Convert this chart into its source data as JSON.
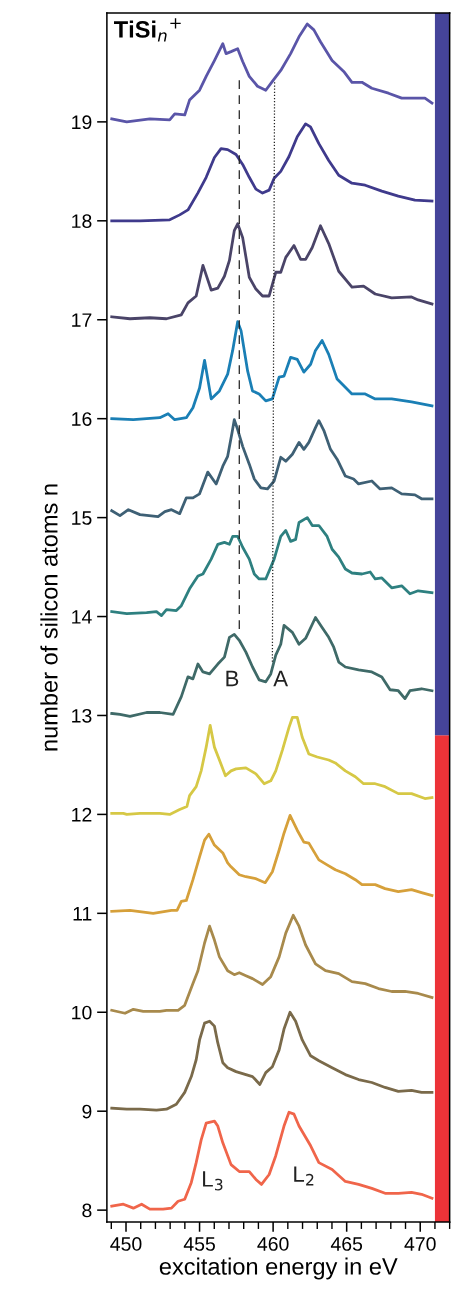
{
  "chart_data": {
    "type": "line",
    "title": "TiSi$_{n}$$^{+}$",
    "xlabel": "excitation energy in eV",
    "ylabel": "number of silicon atoms n",
    "xlim": [
      448.7,
      472
    ],
    "xticks": [
      {
        "value": 449,
        "label": null
      },
      450,
      {
        "value": 451,
        "label": null
      },
      {
        "value": 452,
        "label": null
      },
      {
        "value": 453,
        "label": null
      },
      {
        "value": 454,
        "label": null
      },
      455,
      {
        "value": 456,
        "label": null
      },
      {
        "value": 457,
        "label": null
      },
      {
        "value": 458,
        "label": null
      },
      {
        "value": 459,
        "label": null
      },
      460,
      {
        "value": 461,
        "label": null
      },
      {
        "value": 462,
        "label": null
      },
      {
        "value": 463,
        "label": null
      },
      {
        "value": 464,
        "label": null
      },
      465,
      {
        "value": 466,
        "label": null
      },
      {
        "value": 467,
        "label": null
      },
      {
        "value": 468,
        "label": null
      },
      {
        "value": 469,
        "label": null
      },
      470,
      {
        "value": 471,
        "label": null
      },
      {
        "value": 472,
        "label": null
      }
    ],
    "ylim": [
      7.88,
      20.1
    ],
    "yticks": [
      8,
      9,
      10,
      11,
      12,
      13,
      14,
      15,
      16,
      17,
      18,
      19
    ],
    "grid": false,
    "legend": false,
    "marker": "none",
    "annotations": [
      "B",
      "A",
      "L$_{3}$",
      "L$_{2}$"
    ],
    "series": [
      {
        "type": "bar",
        "x": [
          471.5,
          471.5
        ],
        "base": [
          7.88,
          12.8
        ],
        "values": [
          4.92,
          7.3
        ],
        "colors": [
          "#ec3338",
          "#45449a"
        ]
      },
      {
        "color": "#5a55a8",
        "x": [
          449.03,
          450.05,
          451.62,
          452.97,
          453.31,
          453.99,
          454.32,
          455.0,
          455.45,
          456.01,
          456.58,
          456.8,
          457.14,
          457.59,
          457.93,
          458.38,
          458.94,
          459.5,
          459.95,
          460.52,
          461.19,
          461.76,
          462.32,
          462.77,
          463.22,
          464.01,
          464.8,
          465.36,
          466.04,
          466.71,
          467.84,
          468.74,
          469.64,
          470.32,
          470.8
        ],
        "values": [
          19.03,
          19.0,
          19.03,
          19.02,
          19.08,
          19.07,
          19.22,
          19.32,
          19.46,
          19.62,
          19.79,
          19.69,
          19.71,
          19.74,
          19.61,
          19.46,
          19.36,
          19.32,
          19.41,
          19.52,
          19.69,
          19.86,
          19.99,
          19.93,
          19.81,
          19.62,
          19.51,
          19.4,
          19.4,
          19.34,
          19.29,
          19.24,
          19.24,
          19.24,
          19.19
        ]
      },
      {
        "color": "#3f3a8c",
        "x": [
          449.03,
          450.95,
          452.97,
          453.65,
          454.21,
          454.88,
          455.45,
          456.01,
          456.46,
          456.91,
          457.48,
          457.93,
          458.38,
          458.83,
          459.28,
          459.73,
          460.07,
          460.52,
          461.08,
          461.64,
          462.21,
          462.54,
          463.11,
          463.78,
          464.46,
          465.36,
          466.26,
          467.39,
          468.51,
          469.64,
          470.8
        ],
        "values": [
          18.0,
          18.0,
          18.01,
          18.06,
          18.11,
          18.28,
          18.44,
          18.64,
          18.73,
          18.72,
          18.67,
          18.57,
          18.44,
          18.32,
          18.28,
          18.31,
          18.43,
          18.5,
          18.65,
          18.85,
          18.98,
          18.95,
          18.78,
          18.61,
          18.46,
          18.38,
          18.36,
          18.3,
          18.25,
          18.21,
          18.2
        ]
      },
      {
        "color": "#4a4468",
        "x": [
          449.03,
          450.27,
          451.62,
          452.75,
          453.76,
          454.21,
          454.77,
          455.23,
          455.79,
          456.24,
          456.69,
          457.03,
          457.36,
          457.59,
          457.93,
          458.38,
          458.83,
          459.28,
          459.73,
          460.18,
          460.52,
          460.86,
          461.42,
          461.87,
          462.21,
          462.66,
          463.22,
          463.78,
          464.46,
          465.36,
          466.15,
          466.94,
          468.06,
          469.41,
          469.86,
          470.8
        ],
        "values": [
          17.03,
          17.01,
          17.02,
          17.01,
          17.05,
          17.17,
          17.24,
          17.55,
          17.3,
          17.32,
          17.44,
          17.6,
          17.9,
          17.97,
          17.83,
          17.43,
          17.31,
          17.24,
          17.24,
          17.48,
          17.48,
          17.63,
          17.75,
          17.61,
          17.61,
          17.73,
          17.95,
          17.77,
          17.49,
          17.33,
          17.34,
          17.26,
          17.22,
          17.23,
          17.2,
          17.16
        ]
      },
      {
        "color": "#1a7fb5",
        "x": [
          449.03,
          450.5,
          452.3,
          452.86,
          453.31,
          454.1,
          454.55,
          455.0,
          455.34,
          455.79,
          456.35,
          456.91,
          457.25,
          457.59,
          457.82,
          458.27,
          458.6,
          459.05,
          459.5,
          459.95,
          460.41,
          460.74,
          461.19,
          461.64,
          462.09,
          462.55,
          462.88,
          463.33,
          463.78,
          464.35,
          465.36,
          466.26,
          466.94,
          468.06,
          469.41,
          470.8
        ],
        "values": [
          16.0,
          15.99,
          16.01,
          16.05,
          15.99,
          16.01,
          16.11,
          16.31,
          16.59,
          16.2,
          16.28,
          16.45,
          16.69,
          16.98,
          16.89,
          16.48,
          16.28,
          16.25,
          16.18,
          16.2,
          16.42,
          16.43,
          16.62,
          16.6,
          16.47,
          16.55,
          16.69,
          16.79,
          16.65,
          16.4,
          16.25,
          16.25,
          16.2,
          16.2,
          16.17,
          16.13
        ]
      },
      {
        "color": "#3e6075",
        "x": [
          449.03,
          449.59,
          450.16,
          450.95,
          452.18,
          452.64,
          453.09,
          453.65,
          454.1,
          454.55,
          455.0,
          455.56,
          456.13,
          456.58,
          456.91,
          457.21,
          457.36,
          457.59,
          457.93,
          458.38,
          458.72,
          459.17,
          459.62,
          460.07,
          460.52,
          460.86,
          461.31,
          461.76,
          462.09,
          462.43,
          462.88,
          463.11,
          463.45,
          463.9,
          464.35,
          464.91,
          465.47,
          465.81,
          466.71,
          467.27,
          468.06,
          468.74,
          469.64,
          470.09,
          470.8
        ],
        "values": [
          15.07,
          15.02,
          15.08,
          15.03,
          15.01,
          15.06,
          15.08,
          15.04,
          15.2,
          15.2,
          15.24,
          15.46,
          15.34,
          15.52,
          15.62,
          15.86,
          15.99,
          15.89,
          15.72,
          15.54,
          15.39,
          15.3,
          15.29,
          15.37,
          15.61,
          15.57,
          15.64,
          15.76,
          15.69,
          15.76,
          15.91,
          15.98,
          15.88,
          15.69,
          15.59,
          15.42,
          15.39,
          15.34,
          15.37,
          15.29,
          15.3,
          15.24,
          15.23,
          15.19,
          15.19
        ]
      },
      {
        "color": "#2e8080",
        "x": [
          449.03,
          450.05,
          451.4,
          452.07,
          452.41,
          452.75,
          453.42,
          453.76,
          454.32,
          454.89,
          455.23,
          455.79,
          456.24,
          456.69,
          457.03,
          457.25,
          457.59,
          457.93,
          458.38,
          458.72,
          459.05,
          459.5,
          460.07,
          460.52,
          460.86,
          461.19,
          461.53,
          461.76,
          462.32,
          462.66,
          463.11,
          463.67,
          464.01,
          464.46,
          464.91,
          465.36,
          466.04,
          466.6,
          466.94,
          467.39,
          468.06,
          468.74,
          469.3,
          469.86,
          470.8
        ],
        "values": [
          14.05,
          14.03,
          14.04,
          14.05,
          14.01,
          14.07,
          14.06,
          14.11,
          14.28,
          14.41,
          14.43,
          14.58,
          14.73,
          14.75,
          14.73,
          14.81,
          14.81,
          14.7,
          14.58,
          14.43,
          14.38,
          14.38,
          14.58,
          14.81,
          14.87,
          14.76,
          14.78,
          14.95,
          15.0,
          14.92,
          14.92,
          14.81,
          14.68,
          14.6,
          14.48,
          14.44,
          14.43,
          14.45,
          14.38,
          14.39,
          14.29,
          14.31,
          14.23,
          14.26,
          14.24
        ]
      },
      {
        "color": "#3f6a68",
        "x": [
          449.03,
          449.59,
          450.27,
          451.4,
          452.3,
          453.2,
          453.76,
          454.21,
          454.55,
          454.89,
          455.23,
          455.68,
          456.24,
          456.69,
          457.03,
          457.36,
          457.7,
          458.15,
          458.6,
          459.05,
          459.5,
          459.84,
          460.18,
          460.52,
          460.74,
          461.31,
          461.76,
          462.21,
          462.88,
          463.33,
          463.78,
          464.12,
          464.46,
          464.91,
          465.81,
          466.71,
          467.39,
          467.95,
          468.51,
          468.96,
          469.3,
          470.09,
          470.8
        ],
        "values": [
          13.02,
          13.01,
          12.99,
          13.03,
          13.03,
          13.01,
          13.19,
          13.39,
          13.37,
          13.52,
          13.44,
          13.42,
          13.52,
          13.59,
          13.79,
          13.82,
          13.76,
          13.64,
          13.49,
          13.36,
          13.34,
          13.42,
          13.61,
          13.72,
          13.91,
          13.84,
          13.72,
          13.78,
          13.99,
          13.89,
          13.79,
          13.69,
          13.54,
          13.49,
          13.46,
          13.44,
          13.39,
          13.26,
          13.25,
          13.17,
          13.25,
          13.27,
          13.25
        ]
      },
      {
        "color": "#d6c845",
        "x": [
          449.03,
          449.82,
          450.05,
          450.95,
          452.3,
          452.97,
          453.65,
          454.14,
          454.32,
          454.77,
          455.11,
          455.45,
          455.72,
          456.01,
          456.35,
          456.76,
          457.14,
          457.48,
          458.15,
          458.49,
          458.83,
          459.39,
          459.84,
          460.18,
          460.63,
          461.08,
          461.31,
          461.64,
          461.98,
          462.43,
          463.0,
          463.78,
          464.23,
          464.91,
          465.59,
          466.15,
          466.94,
          467.61,
          468.51,
          469.41,
          470.32,
          470.8
        ],
        "values": [
          12.01,
          12.01,
          12.0,
          12.01,
          12.01,
          12.0,
          12.05,
          12.08,
          12.19,
          12.28,
          12.44,
          12.68,
          12.9,
          12.68,
          12.55,
          12.39,
          12.44,
          12.46,
          12.47,
          12.44,
          12.41,
          12.31,
          12.34,
          12.44,
          12.65,
          12.88,
          12.98,
          12.98,
          12.78,
          12.61,
          12.58,
          12.55,
          12.52,
          12.44,
          12.38,
          12.31,
          12.31,
          12.28,
          12.21,
          12.21,
          12.16,
          12.17
        ]
      },
      {
        "color": "#d6a03a",
        "x": [
          449.03,
          450.27,
          451.85,
          453.09,
          453.47,
          453.76,
          454.1,
          454.55,
          455.0,
          455.34,
          455.63,
          456.01,
          456.58,
          456.91,
          457.14,
          457.7,
          458.15,
          458.83,
          459.46,
          459.95,
          460.41,
          460.74,
          461.15,
          461.64,
          462.09,
          462.43,
          463.11,
          463.67,
          464.23,
          464.91,
          465.59,
          466.04,
          466.94,
          467.61,
          468.51,
          469.41,
          470.09,
          470.8
        ],
        "values": [
          11.02,
          11.03,
          11.0,
          11.03,
          11.03,
          11.12,
          11.13,
          11.34,
          11.57,
          11.74,
          11.8,
          11.69,
          11.61,
          11.51,
          11.47,
          11.39,
          11.37,
          11.35,
          11.31,
          11.42,
          11.64,
          11.81,
          11.99,
          11.84,
          11.72,
          11.71,
          11.54,
          11.49,
          11.44,
          11.4,
          11.34,
          11.29,
          11.29,
          11.25,
          11.22,
          11.24,
          11.21,
          11.18
        ]
      },
      {
        "color": "#a88a4c",
        "x": [
          449.03,
          449.93,
          450.5,
          451.17,
          452.3,
          452.75,
          453.54,
          453.99,
          454.55,
          454.89,
          455.34,
          455.68,
          456.01,
          456.35,
          456.91,
          457.36,
          457.7,
          458.15,
          458.6,
          459.28,
          459.84,
          460.41,
          460.86,
          461.37,
          461.76,
          462.21,
          462.88,
          463.56,
          464.46,
          465.36,
          466.26,
          467.16,
          468.06,
          468.96,
          469.86,
          470.8
        ],
        "values": [
          10.02,
          9.99,
          10.03,
          10.01,
          10.01,
          10.02,
          10.02,
          10.07,
          10.29,
          10.42,
          10.7,
          10.87,
          10.73,
          10.56,
          10.42,
          10.38,
          10.4,
          10.37,
          10.34,
          10.28,
          10.36,
          10.56,
          10.8,
          10.98,
          10.87,
          10.68,
          10.49,
          10.42,
          10.39,
          10.31,
          10.29,
          10.24,
          10.21,
          10.21,
          10.19,
          10.15
        ]
      },
      {
        "color": "#7a6a4a",
        "x": [
          449.03,
          450.05,
          450.95,
          452.07,
          452.75,
          453.42,
          453.99,
          454.44,
          454.77,
          455.0,
          455.34,
          455.68,
          456.01,
          456.24,
          456.58,
          456.91,
          457.48,
          458.15,
          458.6,
          459.1,
          459.5,
          459.95,
          460.41,
          460.74,
          461.15,
          461.53,
          461.98,
          462.55,
          463.11,
          464.01,
          464.91,
          465.81,
          466.71,
          467.61,
          468.51,
          469.41,
          470.09,
          470.8
        ],
        "values": [
          9.03,
          9.02,
          9.02,
          9.01,
          9.02,
          9.07,
          9.19,
          9.35,
          9.52,
          9.72,
          9.89,
          9.91,
          9.86,
          9.69,
          9.49,
          9.44,
          9.4,
          9.37,
          9.35,
          9.27,
          9.39,
          9.45,
          9.62,
          9.83,
          10.0,
          9.91,
          9.72,
          9.56,
          9.51,
          9.44,
          9.37,
          9.32,
          9.29,
          9.24,
          9.2,
          9.21,
          9.19,
          9.19
        ]
      },
      {
        "color": "#f0654a",
        "x": [
          449.03,
          449.82,
          450.5,
          451.06,
          451.62,
          452.52,
          453.09,
          453.54,
          453.99,
          454.44,
          454.77,
          455.11,
          455.45,
          456.01,
          456.24,
          456.58,
          457.14,
          457.7,
          458.38,
          458.83,
          459.21,
          459.73,
          460.18,
          460.74,
          461.08,
          461.42,
          461.76,
          462.55,
          463.11,
          464.01,
          464.91,
          465.81,
          466.71,
          467.61,
          468.51,
          469.41,
          470.09,
          470.8
        ],
        "values": [
          8.04,
          8.06,
          8.02,
          8.06,
          8.01,
          8.01,
          8.02,
          8.09,
          8.11,
          8.28,
          8.48,
          8.71,
          8.88,
          8.9,
          8.85,
          8.68,
          8.46,
          8.39,
          8.39,
          8.31,
          8.26,
          8.36,
          8.55,
          8.85,
          8.99,
          8.97,
          8.85,
          8.65,
          8.48,
          8.41,
          8.29,
          8.26,
          8.22,
          8.17,
          8.17,
          8.18,
          8.16,
          8.12
        ]
      },
      {
        "type": "line",
        "line_style": "dashed",
        "color": "#222222",
        "x": [
          457.7,
          457.7
        ],
        "values": [
          19.42,
          13.81
        ]
      },
      {
        "type": "line",
        "line_style": "dotted",
        "color": "#222222",
        "x": [
          460.1,
          459.95
        ],
        "values": [
          19.4,
          13.53
        ]
      }
    ]
  }
}
